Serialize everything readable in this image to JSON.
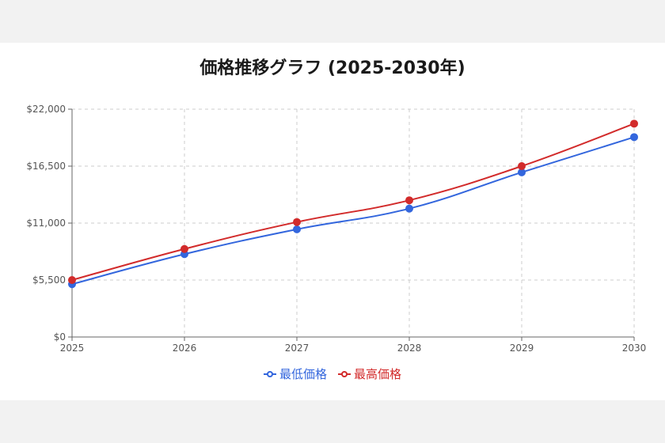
{
  "chart_data": {
    "type": "line",
    "title": "価格推移グラフ (2025-2030年)",
    "categories": [
      "2025",
      "2026",
      "2027",
      "2028",
      "2029",
      "2030"
    ],
    "y_ticks": [
      "$0",
      "$5,500",
      "$11,000",
      "$16,500",
      "$22,000"
    ],
    "y_tick_values": [
      0,
      5500,
      11000,
      16500,
      22000
    ],
    "ylim": [
      0,
      22000
    ],
    "grid": true,
    "legend_position": "bottom",
    "series": [
      {
        "name": "最低価格",
        "color": "#3366dd",
        "values": [
          5100,
          8000,
          10400,
          12400,
          15900,
          19300
        ]
      },
      {
        "name": "最高価格",
        "color": "#d22b2b",
        "values": [
          5500,
          8500,
          11100,
          13200,
          16500,
          20600
        ]
      }
    ]
  }
}
